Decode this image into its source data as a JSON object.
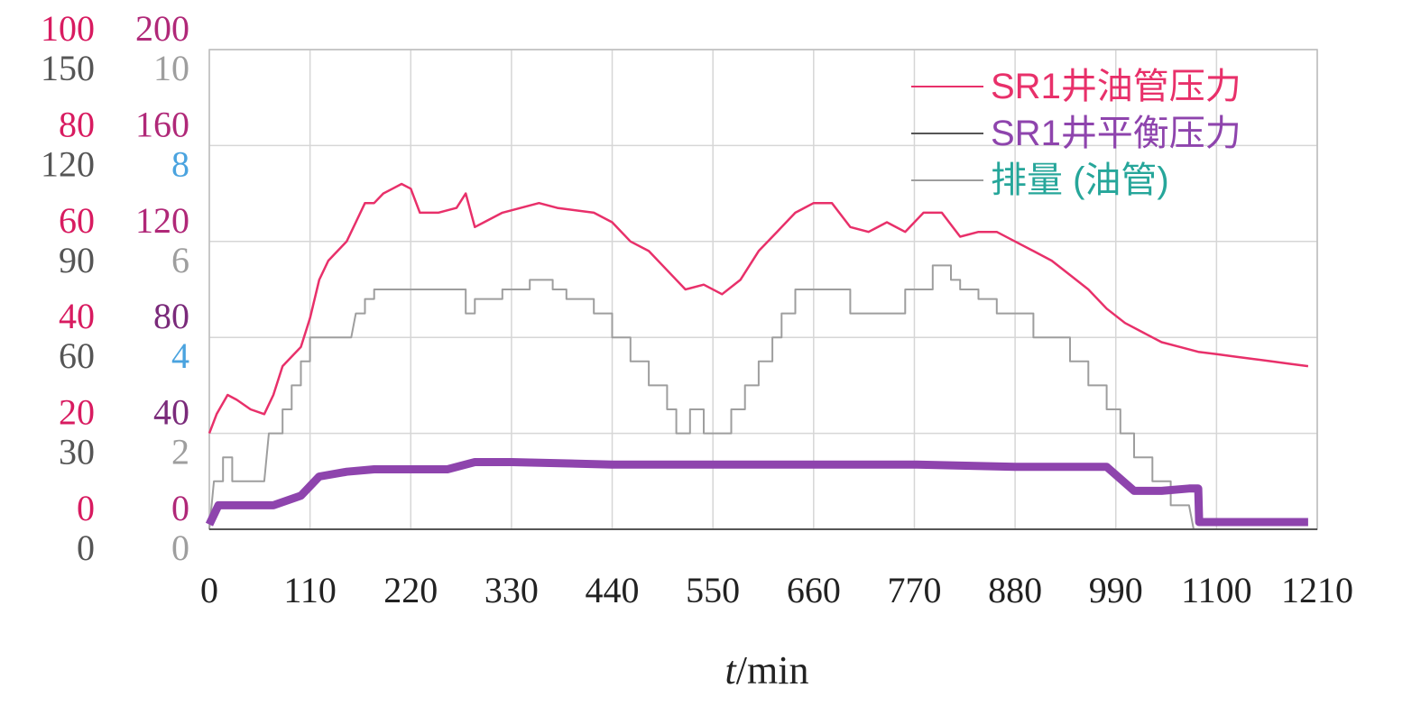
{
  "chart_data": {
    "type": "line",
    "xlabel_italic": "t",
    "xlabel_rest": "/min",
    "xlim": [
      0,
      1210
    ],
    "x_ticks": [
      "0",
      "110",
      "220",
      "330",
      "440",
      "550",
      "660",
      "770",
      "880",
      "990",
      "1100",
      "1210"
    ],
    "grid": true,
    "y_axes": [
      {
        "ticks": [
          "0",
          "20",
          "40",
          "60",
          "80",
          "100"
        ],
        "range": [
          0,
          100
        ],
        "color": "#d81b60",
        "tick_colors": [
          "#d81b60",
          "#d81b60",
          "#d81b60",
          "#d81b60",
          "#d81b60",
          "#d81b60"
        ]
      },
      {
        "ticks": [
          "0",
          "30",
          "60",
          "90",
          "120",
          "150"
        ],
        "range": [
          0,
          150
        ],
        "color": "#555555",
        "tick_colors": [
          "#555555",
          "#555555",
          "#555555",
          "#555555",
          "#555555",
          "#555555"
        ]
      },
      {
        "ticks": [
          "0",
          "40",
          "80",
          "120",
          "160",
          "200"
        ],
        "range": [
          0,
          200
        ],
        "color": "#9c2a7a",
        "tick_colors": [
          "#b02878",
          "#7a2a7a",
          "#7a2a7a",
          "#b02878",
          "#b02878",
          "#b02878"
        ]
      },
      {
        "ticks": [
          "0",
          "2",
          "4",
          "6",
          "8",
          "10"
        ],
        "range": [
          0,
          10
        ],
        "color": "#9e9e9e",
        "tick_colors": [
          "#9e9e9e",
          "#9e9e9e",
          "#4aa3df",
          "#9e9e9e",
          "#4aa3df",
          "#9e9e9e"
        ]
      }
    ],
    "legend": {
      "placement": "top-right",
      "items": [
        {
          "label": "SR1井油管压力",
          "line_color": "#e8306a",
          "text_color": "#e8306a"
        },
        {
          "label": "SR1井平衡压力",
          "line_color": "#555555",
          "text_color": "#8e44ad"
        },
        {
          "label": "排量 (油管)",
          "line_color": "#9e9e9e",
          "text_color": "#26a69a"
        }
      ]
    },
    "series": [
      {
        "name": "SR1井油管压力",
        "color": "#e8306a",
        "axis_range": [
          0,
          100
        ],
        "points": [
          [
            0,
            20
          ],
          [
            8,
            24
          ],
          [
            20,
            28
          ],
          [
            30,
            27
          ],
          [
            45,
            25
          ],
          [
            60,
            24
          ],
          [
            70,
            28
          ],
          [
            80,
            34
          ],
          [
            90,
            36
          ],
          [
            100,
            38
          ],
          [
            110,
            44
          ],
          [
            120,
            52
          ],
          [
            130,
            56
          ],
          [
            140,
            58
          ],
          [
            150,
            60
          ],
          [
            160,
            64
          ],
          [
            170,
            68
          ],
          [
            180,
            68
          ],
          [
            190,
            70
          ],
          [
            200,
            71
          ],
          [
            210,
            72
          ],
          [
            220,
            71
          ],
          [
            230,
            66
          ],
          [
            250,
            66
          ],
          [
            270,
            67
          ],
          [
            280,
            70
          ],
          [
            290,
            63
          ],
          [
            300,
            64
          ],
          [
            320,
            66
          ],
          [
            340,
            67
          ],
          [
            360,
            68
          ],
          [
            380,
            67
          ],
          [
            420,
            66
          ],
          [
            440,
            64
          ],
          [
            460,
            60
          ],
          [
            480,
            58
          ],
          [
            500,
            54
          ],
          [
            520,
            50
          ],
          [
            540,
            51
          ],
          [
            560,
            49
          ],
          [
            580,
            52
          ],
          [
            600,
            58
          ],
          [
            620,
            62
          ],
          [
            640,
            66
          ],
          [
            660,
            68
          ],
          [
            680,
            68
          ],
          [
            700,
            63
          ],
          [
            720,
            62
          ],
          [
            740,
            64
          ],
          [
            760,
            62
          ],
          [
            780,
            66
          ],
          [
            800,
            66
          ],
          [
            820,
            61
          ],
          [
            840,
            62
          ],
          [
            860,
            62
          ],
          [
            880,
            60
          ],
          [
            900,
            58
          ],
          [
            920,
            56
          ],
          [
            940,
            53
          ],
          [
            960,
            50
          ],
          [
            980,
            46
          ],
          [
            1000,
            43
          ],
          [
            1020,
            41
          ],
          [
            1040,
            39
          ],
          [
            1060,
            38
          ],
          [
            1080,
            37
          ],
          [
            1100,
            36.5
          ],
          [
            1120,
            36
          ],
          [
            1140,
            35.5
          ],
          [
            1160,
            35
          ],
          [
            1180,
            34.5
          ],
          [
            1200,
            34
          ]
        ]
      },
      {
        "name": "SR1井平衡压力",
        "color": "#555555",
        "axis_range": [
          0,
          150
        ],
        "points": [
          [
            0,
            0
          ],
          [
            40,
            0
          ],
          [
            400,
            0
          ],
          [
            800,
            0
          ],
          [
            1000,
            0
          ],
          [
            1200,
            0
          ],
          [
            1210,
            0
          ]
        ]
      },
      {
        "name": "SR1井平衡压力 (purple)",
        "color": "#8e44ad",
        "axis_range": [
          0,
          200
        ],
        "points": [
          [
            0,
            2
          ],
          [
            10,
            10
          ],
          [
            50,
            10
          ],
          [
            70,
            10
          ],
          [
            100,
            14
          ],
          [
            120,
            22
          ],
          [
            150,
            24
          ],
          [
            180,
            25
          ],
          [
            220,
            25
          ],
          [
            260,
            25
          ],
          [
            290,
            28
          ],
          [
            330,
            28
          ],
          [
            440,
            27
          ],
          [
            550,
            27
          ],
          [
            660,
            27
          ],
          [
            770,
            27
          ],
          [
            880,
            26
          ],
          [
            900,
            26
          ],
          [
            920,
            26
          ],
          [
            940,
            26
          ],
          [
            980,
            26
          ],
          [
            1010,
            16
          ],
          [
            1040,
            16
          ],
          [
            1070,
            17
          ],
          [
            1080,
            17
          ],
          [
            1081,
            3
          ],
          [
            1100,
            3
          ],
          [
            1200,
            3
          ]
        ]
      },
      {
        "name": "排量 (油管)",
        "color": "#9e9e9e",
        "axis_range": [
          0,
          10
        ],
        "points": [
          [
            0,
            0
          ],
          [
            5,
            1
          ],
          [
            15,
            1
          ],
          [
            15,
            1.5
          ],
          [
            25,
            1.5
          ],
          [
            25,
            1
          ],
          [
            60,
            1
          ],
          [
            65,
            2
          ],
          [
            80,
            2
          ],
          [
            80,
            2.5
          ],
          [
            90,
            2.5
          ],
          [
            90,
            3
          ],
          [
            100,
            3
          ],
          [
            100,
            3.5
          ],
          [
            110,
            3.5
          ],
          [
            110,
            4
          ],
          [
            155,
            4
          ],
          [
            160,
            4.5
          ],
          [
            170,
            4.5
          ],
          [
            170,
            4.8
          ],
          [
            180,
            4.8
          ],
          [
            180,
            5
          ],
          [
            280,
            5
          ],
          [
            280,
            4.5
          ],
          [
            290,
            4.5
          ],
          [
            290,
            4.8
          ],
          [
            320,
            4.8
          ],
          [
            320,
            5
          ],
          [
            350,
            5
          ],
          [
            350,
            5.2
          ],
          [
            375,
            5.2
          ],
          [
            375,
            5
          ],
          [
            390,
            5
          ],
          [
            390,
            4.8
          ],
          [
            420,
            4.8
          ],
          [
            420,
            4.5
          ],
          [
            440,
            4.5
          ],
          [
            440,
            4
          ],
          [
            460,
            4
          ],
          [
            460,
            3.5
          ],
          [
            480,
            3.5
          ],
          [
            480,
            3
          ],
          [
            500,
            3
          ],
          [
            500,
            2.5
          ],
          [
            510,
            2.5
          ],
          [
            510,
            2
          ],
          [
            525,
            2
          ],
          [
            525,
            2.5
          ],
          [
            540,
            2.5
          ],
          [
            540,
            2
          ],
          [
            570,
            2
          ],
          [
            570,
            2.5
          ],
          [
            585,
            2.5
          ],
          [
            585,
            3
          ],
          [
            600,
            3
          ],
          [
            600,
            3.5
          ],
          [
            615,
            3.5
          ],
          [
            615,
            4
          ],
          [
            625,
            4
          ],
          [
            625,
            4.5
          ],
          [
            640,
            4.5
          ],
          [
            640,
            5
          ],
          [
            700,
            5
          ],
          [
            700,
            4.5
          ],
          [
            760,
            4.5
          ],
          [
            760,
            5
          ],
          [
            790,
            5
          ],
          [
            790,
            5.5
          ],
          [
            810,
            5.5
          ],
          [
            810,
            5.2
          ],
          [
            820,
            5.2
          ],
          [
            820,
            5
          ],
          [
            840,
            5
          ],
          [
            840,
            4.8
          ],
          [
            860,
            4.8
          ],
          [
            860,
            4.5
          ],
          [
            900,
            4.5
          ],
          [
            900,
            4
          ],
          [
            940,
            4
          ],
          [
            940,
            3.5
          ],
          [
            960,
            3.5
          ],
          [
            960,
            3
          ],
          [
            980,
            3
          ],
          [
            980,
            2.5
          ],
          [
            995,
            2.5
          ],
          [
            995,
            2
          ],
          [
            1010,
            2
          ],
          [
            1010,
            1.5
          ],
          [
            1030,
            1.5
          ],
          [
            1030,
            1
          ],
          [
            1050,
            1
          ],
          [
            1050,
            0.5
          ],
          [
            1070,
            0.5
          ],
          [
            1075,
            0
          ],
          [
            1210,
            0
          ]
        ]
      }
    ]
  }
}
